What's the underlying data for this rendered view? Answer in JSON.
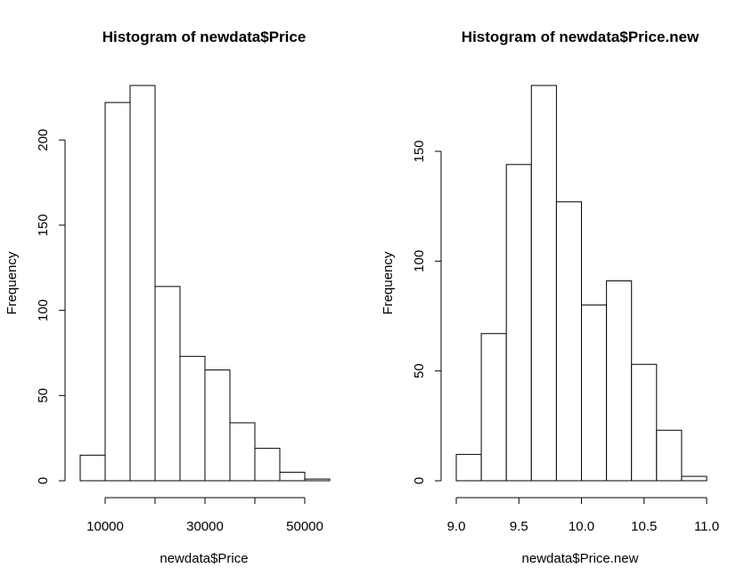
{
  "chart_data": [
    {
      "type": "bar",
      "title": "Histogram of newdata$Price",
      "xlabel": "newdata$Price",
      "ylabel": "Frequency",
      "bin_edges": [
        5000,
        10000,
        15000,
        20000,
        25000,
        30000,
        35000,
        40000,
        45000,
        50000,
        55000
      ],
      "values": [
        15,
        222,
        232,
        114,
        73,
        65,
        34,
        19,
        5,
        1
      ],
      "x_ticks": [
        10000,
        20000,
        30000,
        40000,
        50000
      ],
      "x_tick_labels": [
        "10000",
        "",
        "30000",
        "",
        "50000"
      ],
      "y_ticks": [
        0,
        50,
        100,
        150,
        200
      ],
      "y_tick_labels": [
        "0",
        "50",
        "100",
        "150",
        "200"
      ],
      "xlim": [
        5000,
        55000
      ],
      "ylim": [
        0,
        232
      ]
    },
    {
      "type": "bar",
      "title": "Histogram of newdata$Price.new",
      "xlabel": "newdata$Price.new",
      "ylabel": "Frequency",
      "bin_edges": [
        9.0,
        9.2,
        9.4,
        9.6,
        9.8,
        10.0,
        10.2,
        10.4,
        10.6,
        10.8,
        11.0
      ],
      "values": [
        12,
        67,
        144,
        180,
        127,
        80,
        91,
        53,
        23,
        2
      ],
      "x_ticks": [
        9.0,
        9.5,
        10.0,
        10.5,
        11.0
      ],
      "x_tick_labels": [
        "9.0",
        "9.5",
        "10.0",
        "10.5",
        "11.0"
      ],
      "y_ticks": [
        0,
        50,
        100,
        150
      ],
      "y_tick_labels": [
        "0",
        "50",
        "100",
        "150"
      ],
      "xlim": [
        9.0,
        11.0
      ],
      "ylim": [
        0,
        180
      ]
    }
  ]
}
